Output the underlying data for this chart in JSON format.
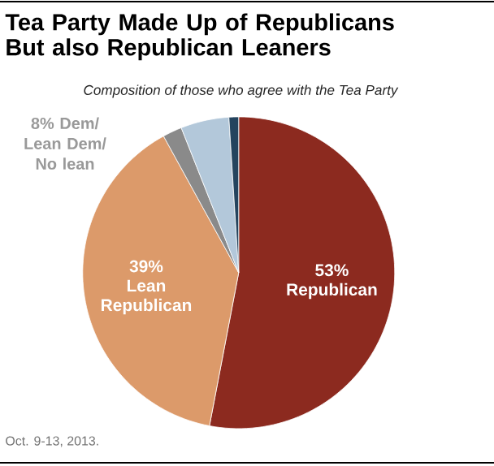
{
  "chart_data": {
    "type": "pie",
    "title": "Tea Party Made Up of Republicans But also Republican Leaners",
    "subtitle": "Composition of those who agree with the Tea Party",
    "categories": [
      "Republican",
      "Lean Republican",
      null,
      null,
      null
    ],
    "values": [
      53,
      39,
      2,
      5,
      1
    ],
    "value_labels": [
      "53%",
      "39%",
      null,
      null,
      null
    ],
    "colors": [
      "#8c2a1f",
      "#dc9a6a",
      "#8a8a8a",
      "#b3c8da",
      "#24445e"
    ],
    "annotations": [
      "8% Dem/ Lean Dem/ No lean",
      "Oct. 9-13, 2013."
    ]
  }
}
